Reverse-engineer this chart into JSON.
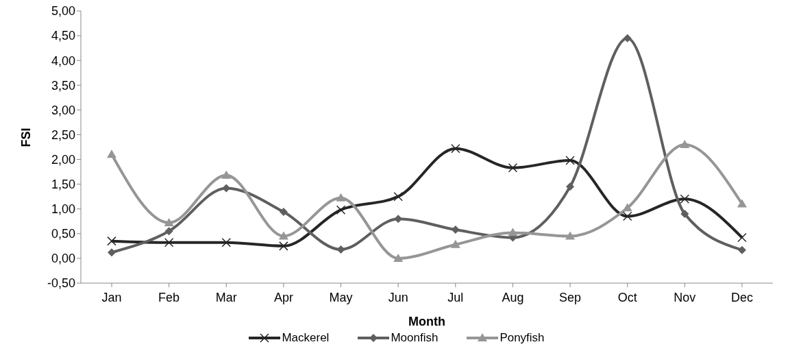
{
  "chart_data": {
    "type": "line",
    "xlabel": "Month",
    "ylabel": "FSI",
    "categories": [
      "Jan",
      "Feb",
      "Mar",
      "Apr",
      "May",
      "Jun",
      "Jul",
      "Aug",
      "Sep",
      "Oct",
      "Nov",
      "Dec"
    ],
    "series": [
      {
        "name": "Mackerel",
        "color": "#262626",
        "marker": "cross",
        "values": [
          0.35,
          0.32,
          0.32,
          0.25,
          0.98,
          1.25,
          2.22,
          1.83,
          1.98,
          0.85,
          1.2,
          0.42
        ]
      },
      {
        "name": "Moonfish",
        "color": "#5f5f5f",
        "marker": "diamond",
        "values": [
          0.12,
          0.55,
          1.42,
          0.94,
          0.18,
          0.8,
          0.58,
          0.42,
          1.45,
          4.45,
          0.9,
          0.17
        ]
      },
      {
        "name": "Ponyfish",
        "color": "#969696",
        "marker": "triangle",
        "values": [
          2.1,
          0.72,
          1.68,
          0.45,
          1.22,
          0.0,
          0.28,
          0.52,
          0.45,
          1.02,
          2.3,
          1.1
        ]
      }
    ],
    "ylim": [
      -0.5,
      5
    ],
    "yticks": [
      {
        "value": -0.5,
        "label": "-0,50"
      },
      {
        "value": 0,
        "label": "0,00"
      },
      {
        "value": 0.5,
        "label": "0,50"
      },
      {
        "value": 1,
        "label": "1,00"
      },
      {
        "value": 1.5,
        "label": "1,50"
      },
      {
        "value": 2,
        "label": "2,00"
      },
      {
        "value": 2.5,
        "label": "2,50"
      },
      {
        "value": 3,
        "label": "3,00"
      },
      {
        "value": 3.5,
        "label": "3,50"
      },
      {
        "value": 4,
        "label": "4,00"
      },
      {
        "value": 4.5,
        "label": "4,50"
      },
      {
        "value": 5,
        "label": "5,00"
      }
    ],
    "legend": "bottom",
    "line_style": "solid"
  }
}
